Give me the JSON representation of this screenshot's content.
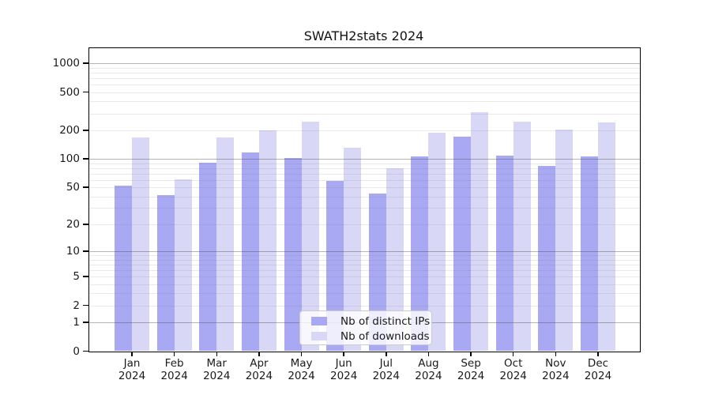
{
  "chart_data": {
    "type": "bar",
    "title": "SWATH2stats 2024",
    "categories": [
      "Jan",
      "Feb",
      "Mar",
      "Apr",
      "May",
      "Jun",
      "Jul",
      "Aug",
      "Sep",
      "Oct",
      "Nov",
      "Dec"
    ],
    "year_label": "2024",
    "series": [
      {
        "name": "Nb of distinct IPs",
        "color": "#a8a8f3",
        "values": [
          52,
          41,
          91,
          116,
          102,
          59,
          43,
          107,
          170,
          109,
          85,
          107
        ]
      },
      {
        "name": "Nb of downloads",
        "color": "#d8d8f6",
        "values": [
          167,
          61,
          167,
          200,
          246,
          130,
          79,
          188,
          310,
          245,
          204,
          240
        ]
      }
    ],
    "yticks": [
      0,
      1,
      2,
      5,
      10,
      20,
      50,
      100,
      200,
      500,
      1000
    ],
    "xlabel": "",
    "ylabel": "",
    "scale": "log1p",
    "ylim": [
      0,
      1455
    ],
    "grid": "on",
    "legend_position": "bottom-center",
    "major_gridlines": [
      1,
      10,
      100,
      1000
    ]
  }
}
